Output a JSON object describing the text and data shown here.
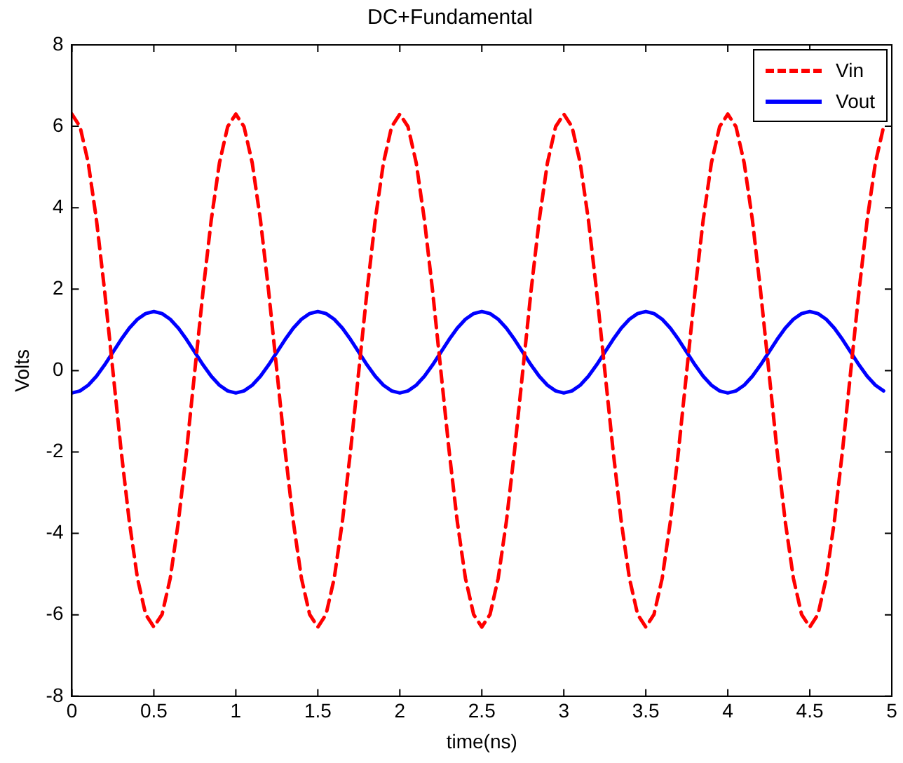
{
  "chart_data": {
    "type": "line",
    "title": "DC+Fundamental",
    "xlabel": "time(ns)",
    "ylabel": "Volts",
    "x": [
      0,
      0.05,
      0.1,
      0.15,
      0.2,
      0.25,
      0.3,
      0.35,
      0.4,
      0.45,
      0.5,
      0.55,
      0.6,
      0.65,
      0.7,
      0.75,
      0.8,
      0.85,
      0.9,
      0.95,
      1,
      1.05,
      1.1,
      1.15,
      1.2,
      1.25,
      1.3,
      1.35,
      1.4,
      1.45,
      1.5,
      1.55,
      1.6,
      1.65,
      1.7,
      1.75,
      1.8,
      1.85,
      1.9,
      1.95,
      2,
      2.05,
      2.1,
      2.15,
      2.2,
      2.25,
      2.3,
      2.35,
      2.4,
      2.45,
      2.5,
      2.55,
      2.6,
      2.65,
      2.7,
      2.75,
      2.8,
      2.85,
      2.9,
      2.95,
      3,
      3.05,
      3.1,
      3.15,
      3.2,
      3.25,
      3.3,
      3.35,
      3.4,
      3.45,
      3.5,
      3.55,
      3.6,
      3.65,
      3.7,
      3.75,
      3.8,
      3.85,
      3.9,
      3.95,
      4,
      4.05,
      4.1,
      4.15,
      4.2,
      4.25,
      4.3,
      4.35,
      4.4,
      4.45,
      4.5,
      4.55,
      4.6,
      4.65,
      4.7,
      4.75,
      4.8,
      4.85,
      4.9,
      4.95
    ],
    "series": [
      {
        "name": "Vin",
        "color": "#ff0000",
        "line_style": "dashed",
        "values": [
          6.3,
          5.99,
          5.1,
          3.7,
          1.95,
          0,
          -1.95,
          -3.7,
          -5.1,
          -5.99,
          -6.3,
          -5.99,
          -5.1,
          -3.7,
          -1.95,
          0,
          1.95,
          3.7,
          5.1,
          5.99,
          6.3,
          5.99,
          5.1,
          3.7,
          1.95,
          0,
          -1.95,
          -3.7,
          -5.1,
          -5.99,
          -6.3,
          -5.99,
          -5.1,
          -3.7,
          -1.95,
          0,
          1.95,
          3.7,
          5.1,
          5.99,
          6.3,
          5.99,
          5.1,
          3.7,
          1.95,
          0,
          -1.95,
          -3.7,
          -5.1,
          -5.99,
          -6.3,
          -5.99,
          -5.1,
          -3.7,
          -1.95,
          0,
          1.95,
          3.7,
          5.1,
          5.99,
          6.3,
          5.99,
          5.1,
          3.7,
          1.95,
          0,
          -1.95,
          -3.7,
          -5.1,
          -5.99,
          -6.3,
          -5.99,
          -5.1,
          -3.7,
          -1.95,
          0,
          1.95,
          3.7,
          5.1,
          5.99,
          6.3,
          5.99,
          5.1,
          3.7,
          1.95,
          0,
          -1.95,
          -3.7,
          -5.1,
          -5.99,
          -6.3,
          -5.99,
          -5.1,
          -3.7,
          -1.95,
          0,
          1.95,
          3.7,
          5.1,
          5.99
        ]
      },
      {
        "name": "Vout",
        "color": "#0000ff",
        "line_style": "solid",
        "values": [
          -0.55,
          -0.5,
          -0.36,
          -0.14,
          0.14,
          0.45,
          0.76,
          1.04,
          1.26,
          1.4,
          1.45,
          1.4,
          1.26,
          1.04,
          0.76,
          0.45,
          0.14,
          -0.14,
          -0.36,
          -0.5,
          -0.55,
          -0.5,
          -0.36,
          -0.14,
          0.14,
          0.45,
          0.76,
          1.04,
          1.26,
          1.4,
          1.45,
          1.4,
          1.26,
          1.04,
          0.76,
          0.45,
          0.14,
          -0.14,
          -0.36,
          -0.5,
          -0.55,
          -0.5,
          -0.36,
          -0.14,
          0.14,
          0.45,
          0.76,
          1.04,
          1.26,
          1.4,
          1.45,
          1.4,
          1.26,
          1.04,
          0.76,
          0.45,
          0.14,
          -0.14,
          -0.36,
          -0.5,
          -0.55,
          -0.5,
          -0.36,
          -0.14,
          0.14,
          0.45,
          0.76,
          1.04,
          1.26,
          1.4,
          1.45,
          1.4,
          1.26,
          1.04,
          0.76,
          0.45,
          0.14,
          -0.14,
          -0.36,
          -0.5,
          -0.55,
          -0.5,
          -0.36,
          -0.14,
          0.14,
          0.45,
          0.76,
          1.04,
          1.26,
          1.4,
          1.45,
          1.4,
          1.26,
          1.04,
          0.76,
          0.45,
          0.14,
          -0.14,
          -0.36,
          -0.5
        ]
      }
    ],
    "xlim": [
      0,
      5
    ],
    "xticks": [
      0,
      0.5,
      1,
      1.5,
      2,
      2.5,
      3,
      3.5,
      4,
      4.5,
      5
    ],
    "ylim": [
      -8,
      8
    ],
    "yticks": [
      -8,
      -6,
      -4,
      -2,
      0,
      2,
      4,
      6,
      8
    ],
    "legend": "top right",
    "marker": "none"
  }
}
